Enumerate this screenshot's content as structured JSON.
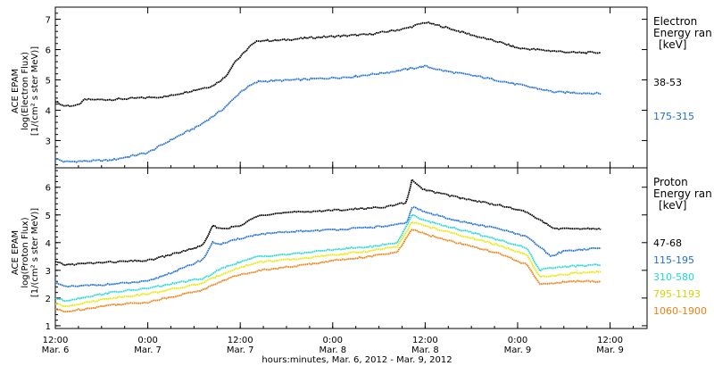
{
  "chart_data": [
    {
      "type": "line",
      "ylabel_lines": [
        "ACE EPAM",
        "log(Electron Flux)",
        "[1/(cm² s ster MeV)]"
      ],
      "legend_title": "Electron",
      "legend_subtitle": "Energy ran",
      "legend_unit": "[keV]",
      "ylim": [
        2.1,
        7.4
      ],
      "yticks": [
        3,
        4,
        5,
        6,
        7
      ],
      "series": [
        {
          "name": "38-53",
          "color": "#000000",
          "x": [
            0,
            0.04,
            0.12,
            0.16,
            0.3,
            0.6,
            0.85,
            0.92,
            0.97,
            1.0,
            1.05,
            1.1,
            1.2,
            1.4,
            1.7,
            1.9,
            2.0,
            2.1,
            2.3,
            2.4,
            2.5,
            2.8,
            2.95
          ],
          "y": [
            4.3,
            4.15,
            4.15,
            4.35,
            4.35,
            4.45,
            4.8,
            5.1,
            5.6,
            5.75,
            6.1,
            6.3,
            6.3,
            6.4,
            6.5,
            6.7,
            6.9,
            6.75,
            6.4,
            6.25,
            6.05,
            5.9,
            5.9
          ]
        },
        {
          "name": "175-315",
          "color": "#1f6fd1",
          "x": [
            0,
            0.05,
            0.3,
            0.5,
            0.65,
            0.78,
            0.9,
            0.97,
            1.0,
            1.05,
            1.1,
            1.3,
            1.6,
            1.8,
            2.0,
            2.1,
            2.3,
            2.5,
            2.7,
            2.95
          ],
          "y": [
            2.4,
            2.3,
            2.35,
            2.6,
            3.1,
            3.5,
            4.0,
            4.4,
            4.6,
            4.8,
            4.95,
            5.0,
            5.1,
            5.25,
            5.45,
            5.3,
            5.1,
            4.85,
            4.6,
            4.55
          ]
        }
      ]
    },
    {
      "type": "line",
      "ylabel_lines": [
        "ACE EPAM",
        "log(Proton Flux)",
        "[1/(cm² s ster MeV)]"
      ],
      "legend_title": "Proton",
      "legend_subtitle": "Energy ran",
      "legend_unit": "[keV]",
      "ylim": [
        0.9,
        6.7
      ],
      "yticks": [
        1,
        2,
        3,
        4,
        5,
        6
      ],
      "series": [
        {
          "name": "47-68",
          "color": "#000000",
          "x": [
            0,
            0.05,
            0.3,
            0.5,
            0.7,
            0.8,
            0.85,
            0.9,
            1.0,
            1.1,
            1.3,
            1.6,
            1.8,
            1.9,
            1.93,
            1.97,
            2.0,
            2.2,
            2.4,
            2.55,
            2.6,
            2.65,
            2.7,
            2.95
          ],
          "y": [
            3.3,
            3.2,
            3.3,
            3.35,
            3.7,
            3.9,
            4.6,
            4.5,
            4.6,
            5.0,
            5.1,
            5.2,
            5.3,
            5.45,
            6.3,
            6.0,
            5.9,
            5.6,
            5.35,
            5.1,
            4.9,
            4.7,
            4.5,
            4.5
          ]
        },
        {
          "name": "115-195",
          "color": "#1f6fd1",
          "x": [
            0,
            0.05,
            0.3,
            0.5,
            0.7,
            0.8,
            0.85,
            0.9,
            1.0,
            1.1,
            1.3,
            1.6,
            1.8,
            1.9,
            1.93,
            2.0,
            2.2,
            2.4,
            2.55,
            2.62,
            2.68,
            2.75,
            2.95
          ],
          "y": [
            2.6,
            2.4,
            2.5,
            2.6,
            3.1,
            3.4,
            4.0,
            3.95,
            4.15,
            4.3,
            4.4,
            4.5,
            4.6,
            4.7,
            5.3,
            5.1,
            4.75,
            4.5,
            4.2,
            3.85,
            3.5,
            3.7,
            3.8
          ]
        },
        {
          "name": "310-580",
          "color": "#22d6d6",
          "x": [
            0,
            0.05,
            0.3,
            0.5,
            0.7,
            0.8,
            0.88,
            0.95,
            1.1,
            1.3,
            1.5,
            1.7,
            1.85,
            1.93,
            2.0,
            2.2,
            2.4,
            2.55,
            2.62,
            2.7,
            2.8,
            2.95
          ],
          "y": [
            2.0,
            1.9,
            2.2,
            2.35,
            2.6,
            2.7,
            3.0,
            3.2,
            3.5,
            3.6,
            3.75,
            3.85,
            4.0,
            5.0,
            4.8,
            4.45,
            4.1,
            3.8,
            3.0,
            3.1,
            3.15,
            3.2
          ]
        },
        {
          "name": "795-1193",
          "color": "#e8e800",
          "x": [
            0,
            0.05,
            0.3,
            0.5,
            0.7,
            0.8,
            0.88,
            0.95,
            1.1,
            1.3,
            1.5,
            1.7,
            1.85,
            1.93,
            2.0,
            2.2,
            2.4,
            2.55,
            2.62,
            2.7,
            2.8,
            2.95
          ],
          "y": [
            1.8,
            1.7,
            2.0,
            2.15,
            2.4,
            2.55,
            2.8,
            3.0,
            3.3,
            3.4,
            3.55,
            3.7,
            3.85,
            4.75,
            4.6,
            4.25,
            3.9,
            3.55,
            2.75,
            2.8,
            2.9,
            2.95
          ]
        },
        {
          "name": "1060-1900",
          "color": "#ee7f10",
          "x": [
            0,
            0.05,
            0.3,
            0.5,
            0.7,
            0.8,
            0.88,
            0.95,
            1.1,
            1.3,
            1.5,
            1.7,
            1.85,
            1.93,
            2.0,
            2.2,
            2.4,
            2.55,
            2.62,
            2.7,
            2.8,
            2.95
          ],
          "y": [
            1.6,
            1.5,
            1.75,
            1.85,
            2.15,
            2.3,
            2.55,
            2.75,
            3.0,
            3.15,
            3.35,
            3.5,
            3.65,
            4.5,
            4.3,
            3.95,
            3.6,
            3.2,
            2.5,
            2.55,
            2.6,
            2.6
          ]
        }
      ]
    }
  ],
  "x_axis": {
    "xlim": [
      0,
      3.2
    ],
    "ticks": [
      {
        "x": 0.0,
        "time": "12:00",
        "date": "Mar. 6"
      },
      {
        "x": 0.5,
        "time": "0:00",
        "date": "Mar. 7"
      },
      {
        "x": 1.0,
        "time": "12:00",
        "date": "Mar. 7"
      },
      {
        "x": 1.5,
        "time": "0:00",
        "date": "Mar. 8"
      },
      {
        "x": 2.0,
        "time": "12:00",
        "date": "Mar. 8"
      },
      {
        "x": 2.5,
        "time": "0:00",
        "date": "Mar. 9"
      },
      {
        "x": 3.0,
        "time": "12:00",
        "date": "Mar. 9"
      }
    ],
    "title": "hours:minutes, Mar.  6, 2012 - Mar.  9, 2012"
  }
}
